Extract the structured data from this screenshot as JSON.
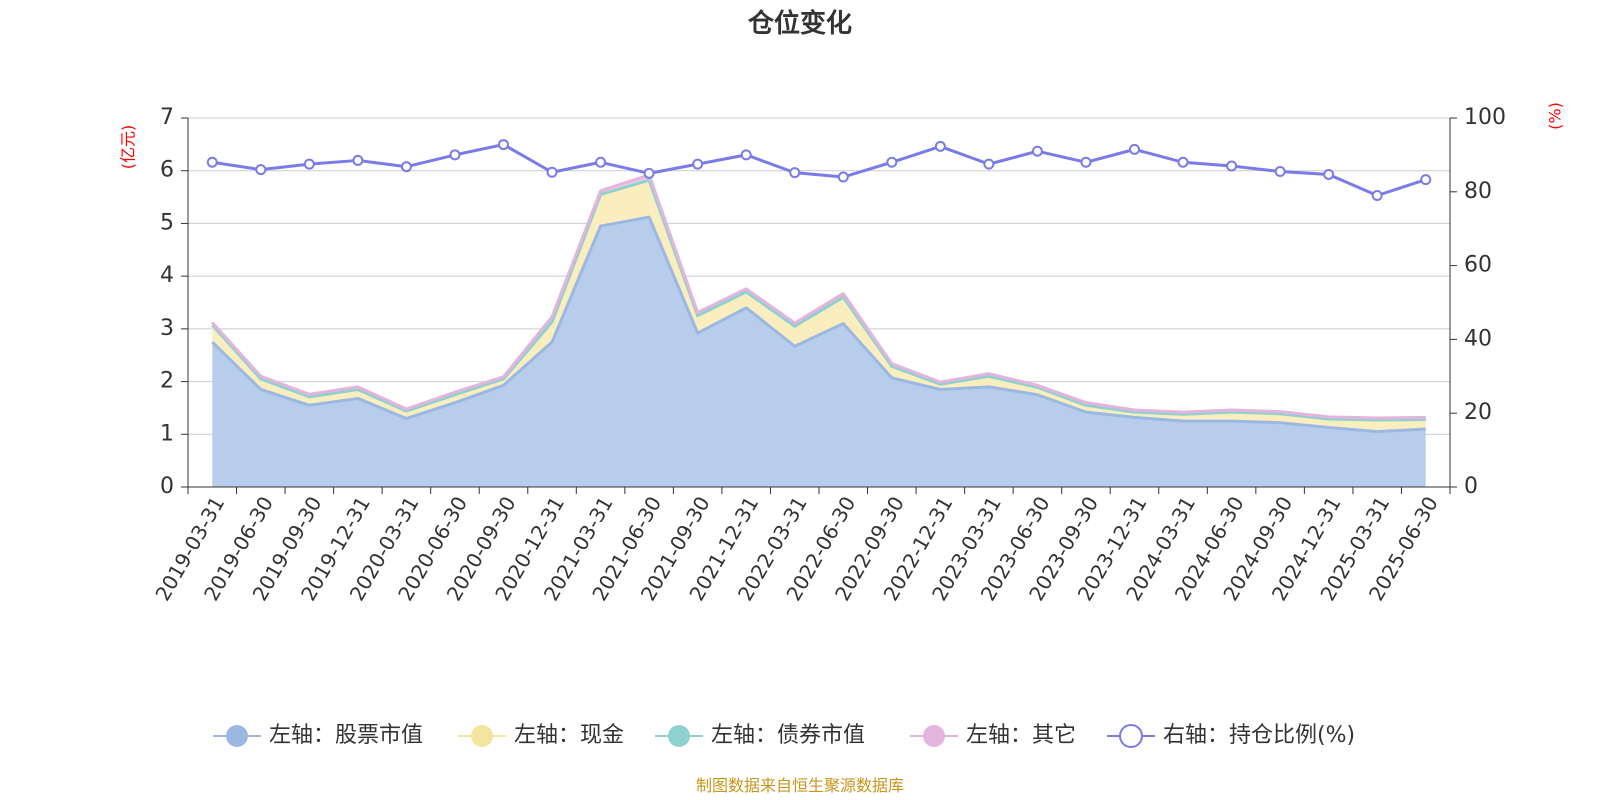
{
  "chart_data": {
    "type": "area",
    "title": "仓位变化",
    "left_axis_unit": "(亿元)",
    "right_axis_unit": "(%)",
    "left_ylim": [
      0,
      7
    ],
    "left_yticks": [
      "0",
      "1",
      "2",
      "3",
      "4",
      "5",
      "6",
      "7"
    ],
    "right_ylim": [
      0,
      100
    ],
    "right_yticks": [
      "0",
      "20",
      "40",
      "60",
      "80",
      "100"
    ],
    "grid": true,
    "legend_position": "bottom",
    "x": [
      "2019-03-31",
      "2019-06-30",
      "2019-09-30",
      "2019-12-31",
      "2020-03-31",
      "2020-06-30",
      "2020-09-30",
      "2020-12-31",
      "2021-03-31",
      "2021-06-30",
      "2021-09-30",
      "2021-12-31",
      "2022-03-31",
      "2022-06-30",
      "2022-09-30",
      "2022-12-31",
      "2023-03-31",
      "2023-06-30",
      "2023-09-30",
      "2023-12-31",
      "2024-03-31",
      "2024-06-30",
      "2024-09-30",
      "2024-12-31",
      "2025-03-31",
      "2025-06-30"
    ],
    "series": [
      {
        "name": "左轴：股票市值",
        "axis": "left",
        "stacked": true,
        "color": "#9bb8e3",
        "fill": "#b8cdeb",
        "values": [
          2.75,
          1.85,
          1.55,
          1.68,
          1.3,
          1.6,
          1.93,
          2.75,
          4.95,
          5.12,
          2.92,
          3.4,
          2.67,
          3.1,
          2.07,
          1.85,
          1.9,
          1.75,
          1.42,
          1.32,
          1.25,
          1.25,
          1.22,
          1.13,
          1.05,
          1.1
        ]
      },
      {
        "name": "左轴：现金",
        "axis": "left",
        "stacked": true,
        "color": "#f5e4a0",
        "fill": "#faedbe",
        "values": [
          0.32,
          0.2,
          0.16,
          0.17,
          0.14,
          0.15,
          0.12,
          0.38,
          0.6,
          0.7,
          0.33,
          0.3,
          0.38,
          0.5,
          0.22,
          0.1,
          0.2,
          0.14,
          0.13,
          0.1,
          0.13,
          0.17,
          0.17,
          0.16,
          0.22,
          0.18
        ]
      },
      {
        "name": "左轴：债券市值",
        "axis": "left",
        "stacked": true,
        "color": "#8fd1d1",
        "fill": "#b5e2e2",
        "values": [
          0,
          0,
          0,
          0,
          0,
          0,
          0,
          0,
          0,
          0,
          0,
          0,
          0,
          0,
          0,
          0,
          0,
          0,
          0,
          0,
          0,
          0,
          0,
          0,
          0,
          0
        ]
      },
      {
        "name": "左轴：其它",
        "axis": "left",
        "stacked": true,
        "color": "#e3b4dc",
        "fill": "#ecc8e6",
        "values": [
          0.05,
          0.05,
          0.05,
          0.05,
          0.04,
          0.05,
          0.04,
          0.1,
          0.07,
          0.1,
          0.06,
          0.06,
          0.06,
          0.07,
          0.05,
          0.04,
          0.05,
          0.04,
          0.05,
          0.04,
          0.04,
          0.04,
          0.04,
          0.04,
          0.04,
          0.04
        ]
      },
      {
        "name": "右轴：持仓比例(%)",
        "axis": "right",
        "stacked": false,
        "color": "#7b7be8",
        "fill": "#ffffff",
        "values": [
          88.0,
          86.0,
          87.5,
          88.5,
          86.8,
          90.0,
          92.8,
          85.3,
          88.0,
          85.0,
          87.5,
          90.0,
          85.2,
          84.0,
          88.0,
          92.3,
          87.5,
          91.0,
          88.0,
          91.5,
          88.0,
          87.0,
          85.5,
          84.7,
          79.0,
          83.3
        ]
      }
    ]
  },
  "source_note": "制图数据来自恒生聚源数据库"
}
